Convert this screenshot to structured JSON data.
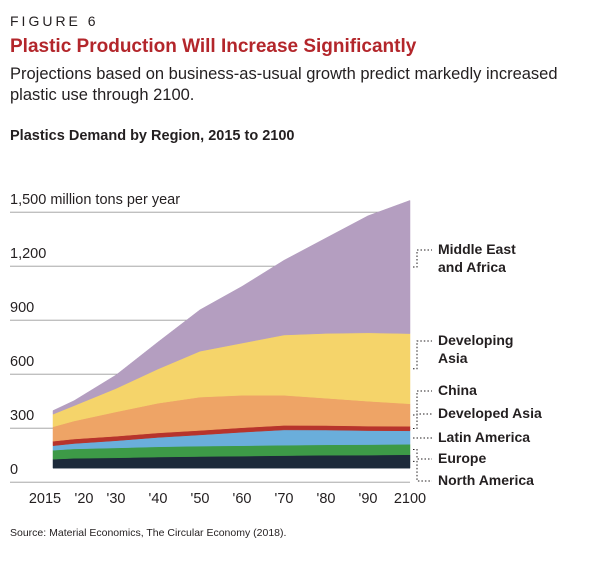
{
  "figure_label": "FIGURE 6",
  "title": "Plastic Production Will Increase Significantly",
  "subtitle": "Projections based on business-as-usual growth predict markedly increased plastic use through 2100.",
  "source": "Source: Material Economics, The Circular Economy (2018).",
  "colors": {
    "title": "#b3262b",
    "North America": "#1d2a3a",
    "Europe": "#3d9a47",
    "Latin America": "#6aaedb",
    "Developed Asia": "#b7342c",
    "China": "#eea466",
    "Developing Asia": "#f5d46a",
    "Middle East and Africa": "#b49ec0"
  },
  "chart_data": {
    "type": "area",
    "stacked": true,
    "title": "Plastics Demand by Region, 2015 to 2100",
    "ylabel": "1,500 million tons per year",
    "x": [
      2015,
      2020,
      2030,
      2040,
      2050,
      2060,
      2070,
      2080,
      2090,
      2100
    ],
    "x_tick_labels": [
      "2015",
      "'20",
      "'30",
      "'40",
      "'50",
      "'60",
      "'70",
      "'80",
      "'90",
      "2100"
    ],
    "y_ticks": [
      0,
      300,
      600,
      900,
      1200
    ],
    "y_tick_labels": [
      "0",
      "300",
      "600",
      "900",
      "1,200"
    ],
    "ylim": [
      -60,
      1500
    ],
    "grid": "horizontal",
    "series": [
      {
        "name": "North America",
        "values": [
          50,
          55,
          58,
          62,
          65,
          67,
          70,
          72,
          73,
          75
        ]
      },
      {
        "name": "Europe",
        "values": [
          50,
          52,
          55,
          57,
          58,
          58,
          58,
          58,
          58,
          58
        ]
      },
      {
        "name": "Latin America",
        "values": [
          25,
          30,
          40,
          52,
          62,
          75,
          85,
          82,
          78,
          75
        ]
      },
      {
        "name": "Developed Asia",
        "values": [
          25,
          25,
          25,
          25,
          25,
          25,
          25,
          25,
          25,
          25
        ]
      },
      {
        "name": "China",
        "values": [
          80,
          100,
          135,
          165,
          185,
          180,
          167,
          152,
          138,
          125
        ]
      },
      {
        "name": "Developing Asia",
        "values": [
          70,
          85,
          130,
          190,
          255,
          290,
          335,
          360,
          380,
          390
        ]
      },
      {
        "name": "Middle East and Africa",
        "values": [
          20,
          28,
          75,
          150,
          230,
          315,
          415,
          530,
          650,
          740
        ]
      }
    ],
    "legend": [
      {
        "series": "Middle East and Africa",
        "lines": [
          "Middle East",
          "and Africa"
        ]
      },
      {
        "series": "Developing Asia",
        "lines": [
          "Developing",
          "Asia"
        ]
      },
      {
        "series": "China",
        "lines": [
          "China"
        ]
      },
      {
        "series": "Developed Asia",
        "lines": [
          "Developed Asia"
        ]
      },
      {
        "series": "Latin America",
        "lines": [
          "Latin America"
        ]
      },
      {
        "series": "Europe",
        "lines": [
          "Europe"
        ]
      },
      {
        "series": "North America",
        "lines": [
          "North America"
        ]
      }
    ],
    "legend_position": "right"
  }
}
